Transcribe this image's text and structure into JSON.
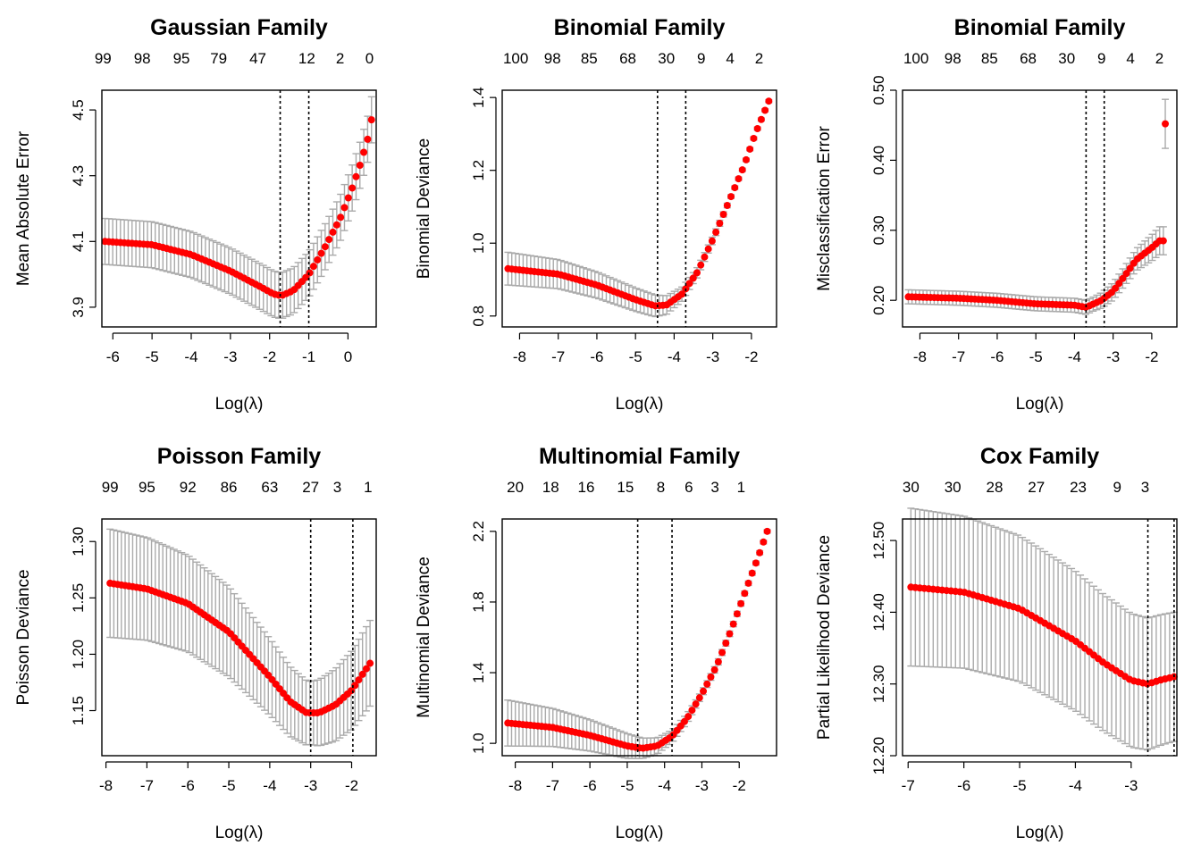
{
  "colors": {
    "points": "#ff0000",
    "errorbars": "#aaaaaa",
    "axes": "#000000",
    "vlines": "#000000"
  },
  "chart_data": [
    {
      "type": "scatter",
      "title": "Gaussian Family",
      "xlabel": "Log(λ)",
      "ylabel": "Mean Absolute Error",
      "xlim": [
        -6.28,
        0.72
      ],
      "ylim": [
        3.84,
        4.56
      ],
      "xticks": [
        -6,
        -5,
        -4,
        -3,
        -2,
        -1,
        0
      ],
      "yticks": [
        3.9,
        4.1,
        4.3,
        4.5
      ],
      "top_axis_label": "",
      "top_ticks": [
        {
          "x": -6.25,
          "label": "99"
        },
        {
          "x": -5.25,
          "label": "98"
        },
        {
          "x": -4.25,
          "label": "95"
        },
        {
          "x": -3.3,
          "label": "79"
        },
        {
          "x": -2.3,
          "label": "47"
        },
        {
          "x": -1.05,
          "label": "12"
        },
        {
          "x": -0.2,
          "label": "2"
        },
        {
          "x": 0.55,
          "label": "0"
        }
      ],
      "vlines": [
        -1.73,
        -1.0
      ],
      "series": [
        {
          "x_range": [
            -6.2,
            0.6
          ],
          "points": 70,
          "mean_curve": [
            [
              -6.2,
              4.1
            ],
            [
              -5.0,
              4.09
            ],
            [
              -4.0,
              4.06
            ],
            [
              -3.0,
              4.01
            ],
            [
              -2.2,
              3.96
            ],
            [
              -1.9,
              3.94
            ],
            [
              -1.7,
              3.935
            ],
            [
              -1.4,
              3.95
            ],
            [
              -1.0,
              4.0
            ],
            [
              -0.6,
              4.08
            ],
            [
              -0.2,
              4.17
            ],
            [
              0.1,
              4.26
            ],
            [
              0.3,
              4.33
            ],
            [
              0.5,
              4.41
            ],
            [
              0.6,
              4.47
            ]
          ],
          "se_curve": [
            [
              -6.2,
              0.07
            ],
            [
              -3.0,
              0.07
            ],
            [
              -1.7,
              0.07
            ],
            [
              0.0,
              0.07
            ],
            [
              0.6,
              0.07
            ]
          ]
        }
      ]
    },
    {
      "type": "scatter",
      "title": "Binomial Family",
      "xlabel": "Log(λ)",
      "ylabel": "Binomial Deviance",
      "xlim": [
        -8.45,
        -1.35
      ],
      "ylim": [
        0.77,
        1.42
      ],
      "xticks": [
        -8,
        -7,
        -6,
        -5,
        -4,
        -3,
        -2
      ],
      "yticks": [
        0.8,
        1.0,
        1.2,
        1.4
      ],
      "top_axis_label": "",
      "top_ticks": [
        {
          "x": -8.1,
          "label": "100"
        },
        {
          "x": -7.15,
          "label": "98"
        },
        {
          "x": -6.2,
          "label": "85"
        },
        {
          "x": -5.2,
          "label": "68"
        },
        {
          "x": -4.2,
          "label": "30"
        },
        {
          "x": -3.3,
          "label": "9"
        },
        {
          "x": -2.55,
          "label": "4"
        },
        {
          "x": -1.8,
          "label": "2"
        }
      ],
      "vlines": [
        -4.43,
        -3.7
      ],
      "series": [
        {
          "x_range": [
            -8.3,
            -1.55
          ],
          "points": 70,
          "mean_curve": [
            [
              -8.3,
              0.93
            ],
            [
              -7.0,
              0.915
            ],
            [
              -6.0,
              0.885
            ],
            [
              -5.0,
              0.845
            ],
            [
              -4.5,
              0.828
            ],
            [
              -4.2,
              0.83
            ],
            [
              -3.8,
              0.86
            ],
            [
              -3.4,
              0.92
            ],
            [
              -3.0,
              1.01
            ],
            [
              -2.6,
              1.11
            ],
            [
              -2.2,
              1.21
            ],
            [
              -1.9,
              1.3
            ],
            [
              -1.55,
              1.39
            ]
          ],
          "se_curve": [
            [
              -8.3,
              0.045
            ],
            [
              -4.5,
              0.03
            ],
            [
              -3.5,
              0.015
            ],
            [
              -2.5,
              0.005
            ],
            [
              -1.55,
              0.004
            ]
          ]
        }
      ]
    },
    {
      "type": "scatter",
      "title": "Binomial Family",
      "xlabel": "Log(λ)",
      "ylabel": "Misclassification Error",
      "xlim": [
        -8.45,
        -1.35
      ],
      "ylim": [
        0.162,
        0.5
      ],
      "xticks": [
        -8,
        -7,
        -6,
        -5,
        -4,
        -3,
        -2
      ],
      "yticks": [
        0.2,
        0.3,
        0.4,
        0.5
      ],
      "top_axis_label": "",
      "top_ticks": [
        {
          "x": -8.1,
          "label": "100"
        },
        {
          "x": -7.15,
          "label": "98"
        },
        {
          "x": -6.2,
          "label": "85"
        },
        {
          "x": -5.2,
          "label": "68"
        },
        {
          "x": -4.2,
          "label": "30"
        },
        {
          "x": -3.3,
          "label": "9"
        },
        {
          "x": -2.55,
          "label": "4"
        },
        {
          "x": -1.8,
          "label": "2"
        }
      ],
      "vlines": [
        -3.7,
        -3.23
      ],
      "series": [
        {
          "x_range": [
            -8.3,
            -1.7
          ],
          "points": 70,
          "mean_curve": [
            [
              -8.3,
              0.205
            ],
            [
              -7.0,
              0.203
            ],
            [
              -6.0,
              0.2
            ],
            [
              -5.0,
              0.195
            ],
            [
              -4.0,
              0.193
            ],
            [
              -3.7,
              0.19
            ],
            [
              -3.3,
              0.2
            ],
            [
              -3.0,
              0.213
            ],
            [
              -2.7,
              0.235
            ],
            [
              -2.4,
              0.258
            ],
            [
              -2.0,
              0.275
            ],
            [
              -1.8,
              0.285
            ]
          ],
          "se_curve": [
            [
              -8.3,
              0.01
            ],
            [
              -3.5,
              0.01
            ],
            [
              -2.5,
              0.015
            ],
            [
              -1.8,
              0.02
            ]
          ],
          "extra_points": [
            {
              "x": -1.65,
              "y": 0.452,
              "se": 0.035
            }
          ]
        }
      ]
    },
    {
      "type": "scatter",
      "title": "Poisson Family",
      "xlabel": "Log(λ)",
      "ylabel": "Poisson Deviance",
      "xlim": [
        -8.1,
        -1.4
      ],
      "ylim": [
        1.11,
        1.32
      ],
      "xticks": [
        -8,
        -7,
        -6,
        -5,
        -4,
        -3,
        -2
      ],
      "yticks": [
        1.15,
        1.2,
        1.25,
        1.3
      ],
      "top_axis_label": "",
      "top_ticks": [
        {
          "x": -7.9,
          "label": "99"
        },
        {
          "x": -7.0,
          "label": "95"
        },
        {
          "x": -6.0,
          "label": "92"
        },
        {
          "x": -5.0,
          "label": "86"
        },
        {
          "x": -4.0,
          "label": "63"
        },
        {
          "x": -3.0,
          "label": "27"
        },
        {
          "x": -2.35,
          "label": "3"
        },
        {
          "x": -1.6,
          "label": "1"
        }
      ],
      "vlines": [
        -3.0,
        -1.97
      ],
      "series": [
        {
          "x_range": [
            -7.9,
            -1.55
          ],
          "points": 70,
          "mean_curve": [
            [
              -7.9,
              1.263
            ],
            [
              -7.0,
              1.258
            ],
            [
              -6.0,
              1.245
            ],
            [
              -5.0,
              1.22
            ],
            [
              -4.5,
              1.2
            ],
            [
              -4.0,
              1.18
            ],
            [
              -3.5,
              1.158
            ],
            [
              -3.1,
              1.148
            ],
            [
              -2.8,
              1.148
            ],
            [
              -2.4,
              1.155
            ],
            [
              -2.0,
              1.168
            ],
            [
              -1.55,
              1.192
            ]
          ],
          "se_curve": [
            [
              -7.9,
              0.048
            ],
            [
              -5.0,
              0.04
            ],
            [
              -3.0,
              0.028
            ],
            [
              -1.55,
              0.038
            ]
          ]
        }
      ]
    },
    {
      "type": "scatter",
      "title": "Multinomial Family",
      "xlabel": "Log(λ)",
      "ylabel": "Multinomial Deviance",
      "xlim": [
        -8.35,
        -1.0
      ],
      "ylim": [
        0.93,
        2.27
      ],
      "xticks": [
        -8,
        -7,
        -6,
        -5,
        -4,
        -3,
        -2
      ],
      "yticks": [
        1.0,
        1.4,
        1.8,
        2.2
      ],
      "top_axis_label": "",
      "top_ticks": [
        {
          "x": -8.0,
          "label": "20"
        },
        {
          "x": -7.05,
          "label": "18"
        },
        {
          "x": -6.1,
          "label": "16"
        },
        {
          "x": -5.05,
          "label": "15"
        },
        {
          "x": -4.1,
          "label": "8"
        },
        {
          "x": -3.35,
          "label": "6"
        },
        {
          "x": -2.65,
          "label": "3"
        },
        {
          "x": -1.95,
          "label": "1"
        }
      ],
      "vlines": [
        -4.72,
        -3.8
      ],
      "series": [
        {
          "x_range": [
            -8.2,
            -1.25
          ],
          "points": 70,
          "mean_curve": [
            [
              -8.2,
              1.115
            ],
            [
              -7.0,
              1.09
            ],
            [
              -6.0,
              1.045
            ],
            [
              -5.0,
              0.985
            ],
            [
              -4.6,
              0.972
            ],
            [
              -4.2,
              0.985
            ],
            [
              -3.8,
              1.04
            ],
            [
              -3.4,
              1.14
            ],
            [
              -3.0,
              1.28
            ],
            [
              -2.6,
              1.44
            ],
            [
              -2.2,
              1.65
            ],
            [
              -1.8,
              1.88
            ],
            [
              -1.5,
              2.05
            ],
            [
              -1.25,
              2.2
            ]
          ],
          "se_curve": [
            [
              -8.2,
              0.13
            ],
            [
              -5.0,
              0.07
            ],
            [
              -4.0,
              0.04
            ],
            [
              -3.0,
              0.02
            ],
            [
              -1.25,
              0.01
            ]
          ]
        }
      ]
    },
    {
      "type": "scatter",
      "title": "Cox Family",
      "xlabel": "Log(λ)",
      "ylabel": "Partial Likelihood Deviance",
      "xlim": [
        -7.1,
        -2.18
      ],
      "ylim": [
        12.2,
        12.53
      ],
      "xticks": [
        -7,
        -6,
        -5,
        -4,
        -3
      ],
      "yticks": [
        12.2,
        12.3,
        12.4,
        12.5
      ],
      "top_axis_label": "",
      "top_ticks": [
        {
          "x": -6.95,
          "label": "30"
        },
        {
          "x": -6.2,
          "label": "30"
        },
        {
          "x": -5.45,
          "label": "28"
        },
        {
          "x": -4.7,
          "label": "27"
        },
        {
          "x": -3.95,
          "label": "23"
        },
        {
          "x": -3.25,
          "label": "9"
        },
        {
          "x": -2.75,
          "label": "3"
        }
      ],
      "vlines": [
        -2.7,
        -2.23
      ],
      "series": [
        {
          "x_range": [
            -6.95,
            -2.23
          ],
          "points": 60,
          "mean_curve": [
            [
              -6.95,
              12.435
            ],
            [
              -6.0,
              12.428
            ],
            [
              -5.0,
              12.405
            ],
            [
              -4.0,
              12.36
            ],
            [
              -3.5,
              12.33
            ],
            [
              -3.0,
              12.305
            ],
            [
              -2.7,
              12.3
            ],
            [
              -2.45,
              12.306
            ],
            [
              -2.23,
              12.31
            ]
          ],
          "se_curve": [
            [
              -6.95,
              12.548
            ],
            [
              -2.23,
              12.548
            ]
          ],
          "se_note": "upper/lower bars"
        }
      ]
    }
  ]
}
